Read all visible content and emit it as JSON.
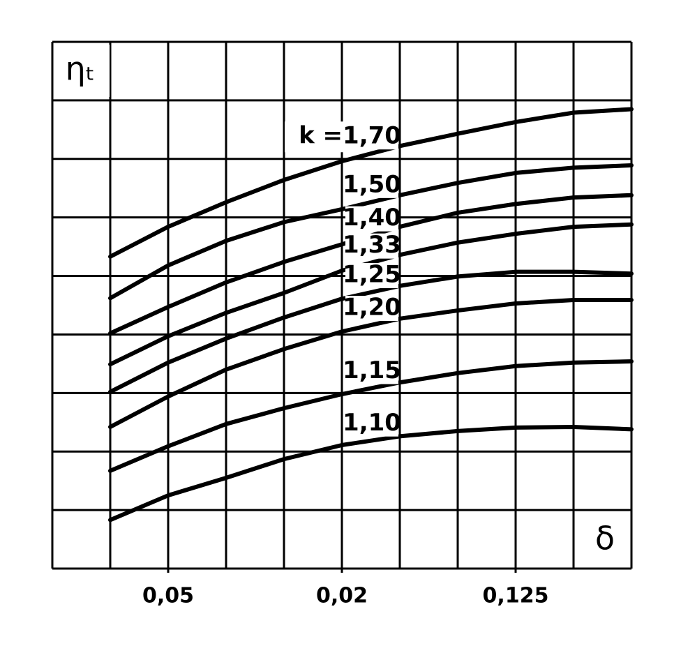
{
  "chart_data": {
    "type": "line",
    "y_label": "ηₜ",
    "x_label": "δ",
    "annotation": "k =",
    "x": [
      1,
      2,
      3,
      4,
      5,
      6,
      7,
      8,
      9,
      10
    ],
    "xlim": [
      0,
      10
    ],
    "ylim": [
      0,
      9
    ],
    "xticks": [
      {
        "value": 2,
        "label": "0,05"
      },
      {
        "value": 5,
        "label": "0,02"
      },
      {
        "value": 8,
        "label": "0,125"
      }
    ],
    "grid": true,
    "series": [
      {
        "name": "1,70",
        "color": "#000000",
        "values": [
          5.33,
          5.84,
          6.26,
          6.64,
          6.96,
          7.22,
          7.43,
          7.63,
          7.79,
          7.85
        ]
      },
      {
        "name": "1,50",
        "color": "#000000",
        "values": [
          4.62,
          5.18,
          5.6,
          5.92,
          6.14,
          6.38,
          6.59,
          6.76,
          6.85,
          6.89
        ]
      },
      {
        "name": "1,40",
        "color": "#000000",
        "values": [
          4.02,
          4.47,
          4.89,
          5.24,
          5.54,
          5.84,
          6.08,
          6.23,
          6.34,
          6.38
        ]
      },
      {
        "name": "1,33",
        "color": "#000000",
        "values": [
          3.49,
          3.97,
          4.37,
          4.71,
          5.09,
          5.36,
          5.57,
          5.72,
          5.84,
          5.88
        ]
      },
      {
        "name": "1,25",
        "color": "#000000",
        "values": [
          3.02,
          3.52,
          3.93,
          4.29,
          4.61,
          4.83,
          4.99,
          5.07,
          5.07,
          5.04
        ]
      },
      {
        "name": "1,20",
        "color": "#000000",
        "values": [
          2.42,
          2.94,
          3.4,
          3.75,
          4.05,
          4.27,
          4.41,
          4.53,
          4.59,
          4.59
        ]
      },
      {
        "name": "1,15",
        "color": "#000000",
        "values": [
          1.67,
          2.09,
          2.47,
          2.74,
          2.98,
          3.18,
          3.34,
          3.46,
          3.52,
          3.54
        ]
      },
      {
        "name": "1,10",
        "color": "#000000",
        "values": [
          0.83,
          1.25,
          1.55,
          1.87,
          2.11,
          2.26,
          2.35,
          2.41,
          2.42,
          2.38
        ]
      }
    ]
  }
}
